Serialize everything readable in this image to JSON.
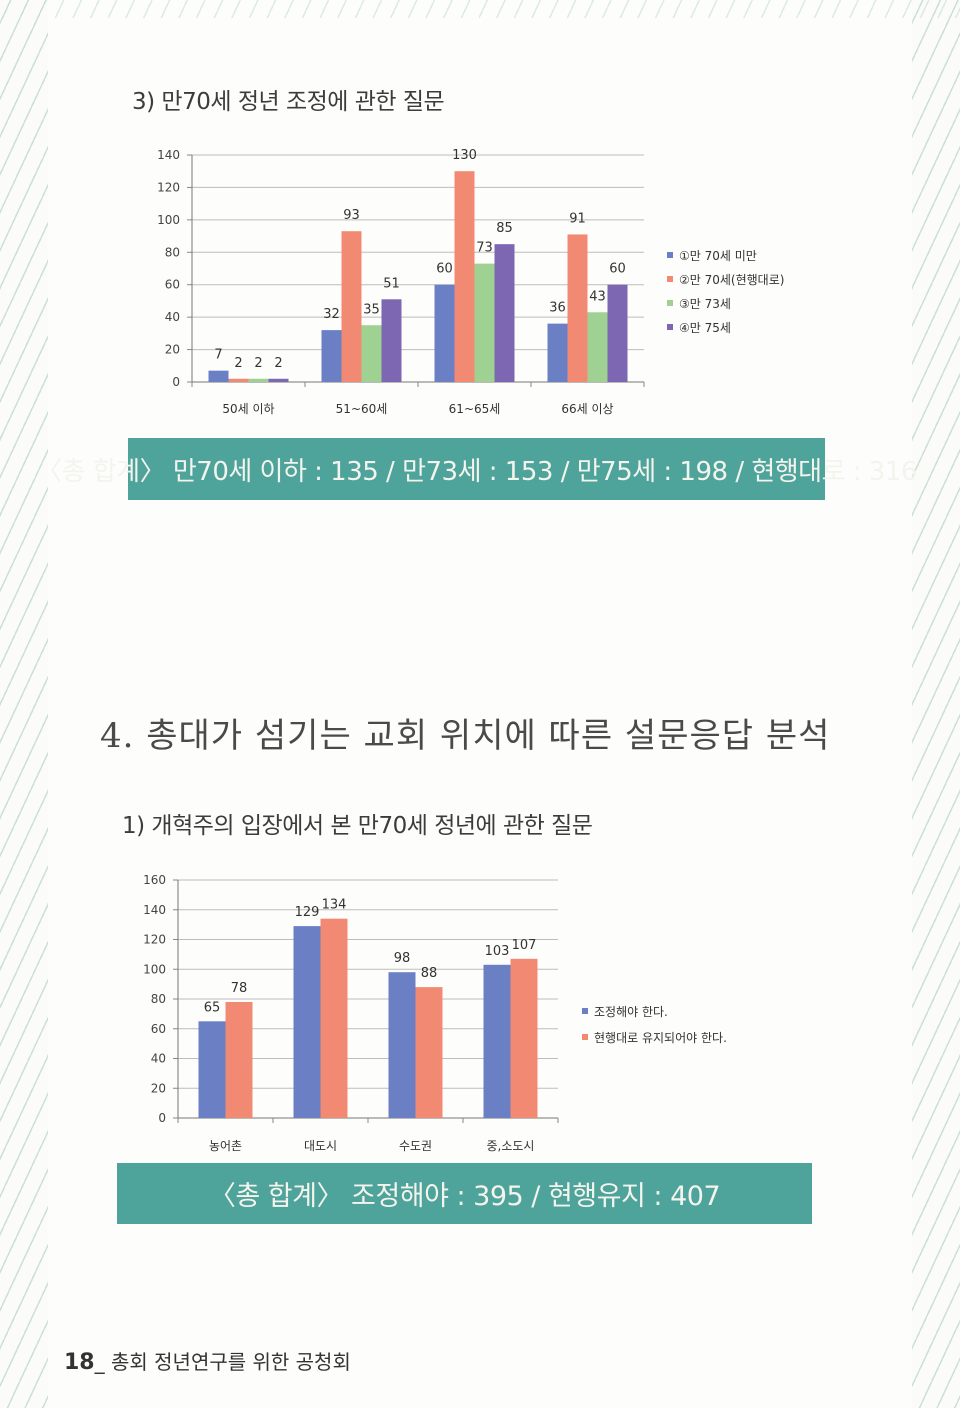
{
  "chart1_title": "3) 만70세 정년 조정에 관한 질문",
  "section_title": "4. 총대가 섬기는 교회 위치에 따른 설문응답 분석",
  "chart2_title": "1) 개혁주의 입장에서 본 만70세 정년에 관한 질문",
  "summary1": "〈총 합계〉 만70세 이하 : 135 / 만73세 : 153 / 만75세 : 198 / 현행대로 : 316",
  "summary2": "〈총 합계〉 조정해야 : 395 / 현행유지 : 407",
  "footer": {
    "page": "18",
    "text": "_ 총회 정년연구를 위한 공청회"
  },
  "colors": {
    "blue": "#6a7fc4",
    "orange": "#f28a73",
    "green": "#9ed192",
    "purple": "#7d66b2",
    "banner": "#4ea39a"
  },
  "chart_data": [
    {
      "type": "bar",
      "title": "3) 만70세 정년 조정에 관한 질문",
      "categories": [
        "50세 이하",
        "51~60세",
        "61~65세",
        "66세 이상"
      ],
      "series": [
        {
          "name": "①만 70세 미만",
          "values": [
            7,
            32,
            60,
            36
          ]
        },
        {
          "name": "②만 70세(현행대로)",
          "values": [
            2,
            93,
            130,
            91
          ]
        },
        {
          "name": "③만 73세",
          "values": [
            2,
            35,
            73,
            43
          ]
        },
        {
          "name": "④만 75세",
          "values": [
            2,
            51,
            85,
            60
          ]
        }
      ],
      "data_labels": [
        [
          "7",
          "2",
          "2",
          "2"
        ],
        [
          "32",
          "93",
          "35",
          "51"
        ],
        [
          "60",
          "130",
          "73",
          "85"
        ],
        [
          "36",
          "91",
          "43",
          "60"
        ]
      ],
      "yticks": [
        "0",
        "20",
        "40",
        "60",
        "80",
        "100",
        "120",
        "140"
      ],
      "ylim": [
        0,
        140
      ],
      "legend": "right",
      "grid": true
    },
    {
      "type": "bar",
      "title": "1) 개혁주의 입장에서 본 만70세 정년에 관한 질문",
      "categories": [
        "농어촌",
        "대도시",
        "수도권",
        "중,소도시"
      ],
      "series": [
        {
          "name": "조정해야 한다.",
          "values": [
            65,
            129,
            98,
            103
          ]
        },
        {
          "name": "현행대로 유지되어야 한다.",
          "values": [
            78,
            134,
            88,
            107
          ]
        }
      ],
      "data_labels": [
        [
          "65",
          "78"
        ],
        [
          "129",
          "134"
        ],
        [
          "98",
          "88"
        ],
        [
          "103",
          "107"
        ]
      ],
      "yticks": [
        "0",
        "20",
        "40",
        "60",
        "80",
        "100",
        "120",
        "140",
        "160"
      ],
      "ylim": [
        0,
        160
      ],
      "legend": "right",
      "grid": true
    }
  ]
}
